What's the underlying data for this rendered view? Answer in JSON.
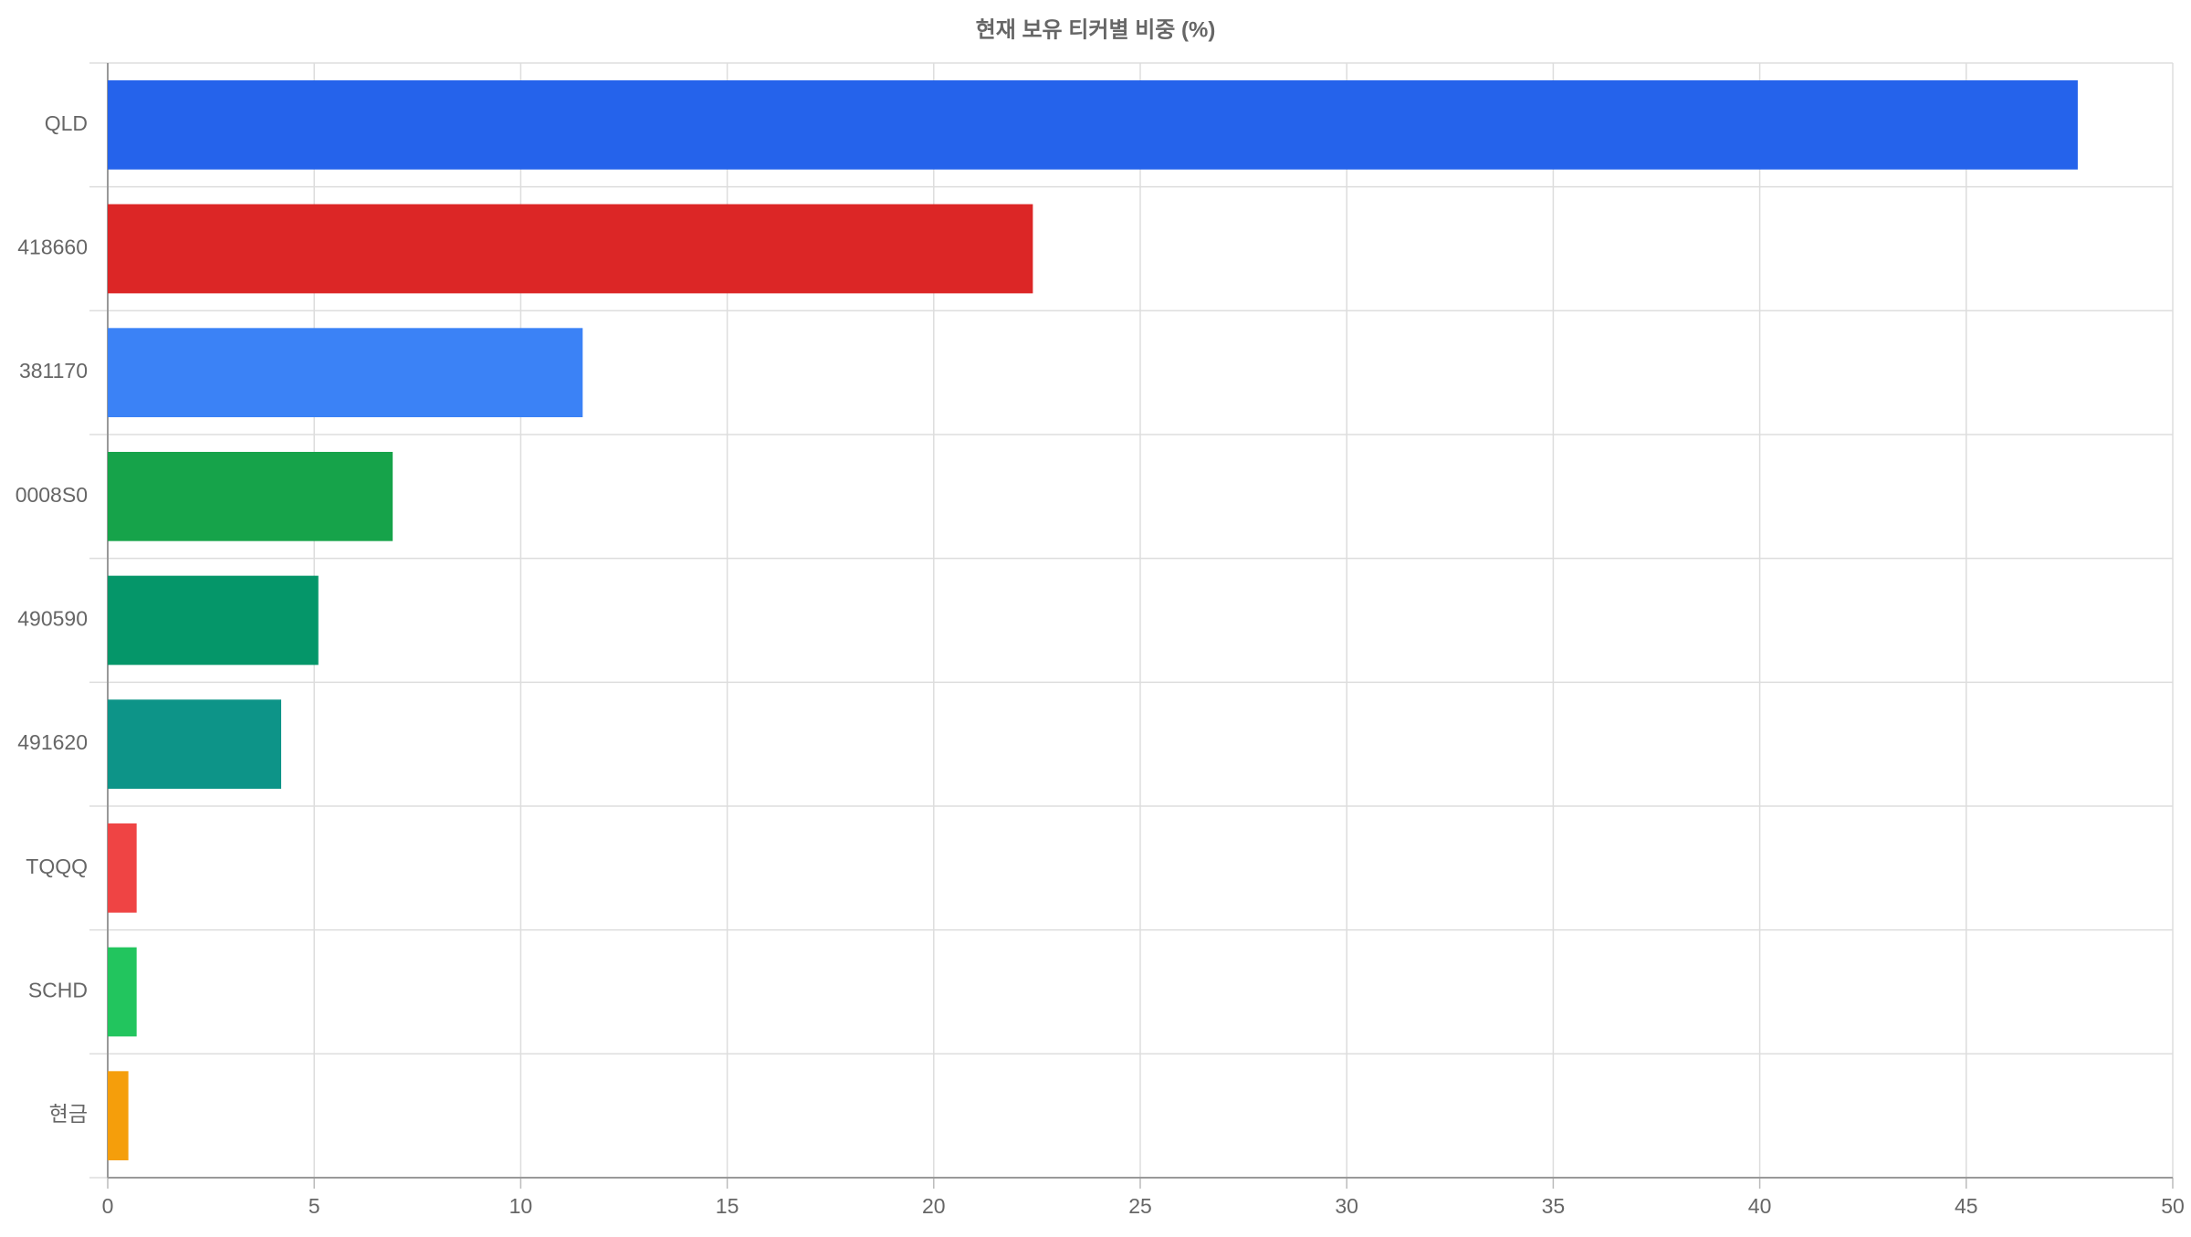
{
  "chart_data": {
    "type": "barh",
    "title": "현재 보유 티커별 비중 (%)",
    "categories": [
      "QLD",
      "418660",
      "381170",
      "0008S0",
      "490590",
      "491620",
      "TQQQ",
      "SCHD",
      "현금"
    ],
    "values": [
      47.7,
      22.4,
      11.5,
      6.9,
      5.1,
      4.2,
      0.7,
      0.7,
      0.5
    ],
    "colors": [
      "#2563eb",
      "#dc2626",
      "#3b82f6",
      "#16a34a",
      "#059669",
      "#0d9488",
      "#ef4444",
      "#22c55e",
      "#f59e0b"
    ],
    "xlim": [
      0,
      50
    ],
    "xticks": [
      0,
      5,
      10,
      15,
      20,
      25,
      30,
      35,
      40,
      45,
      50
    ],
    "grid": true
  }
}
